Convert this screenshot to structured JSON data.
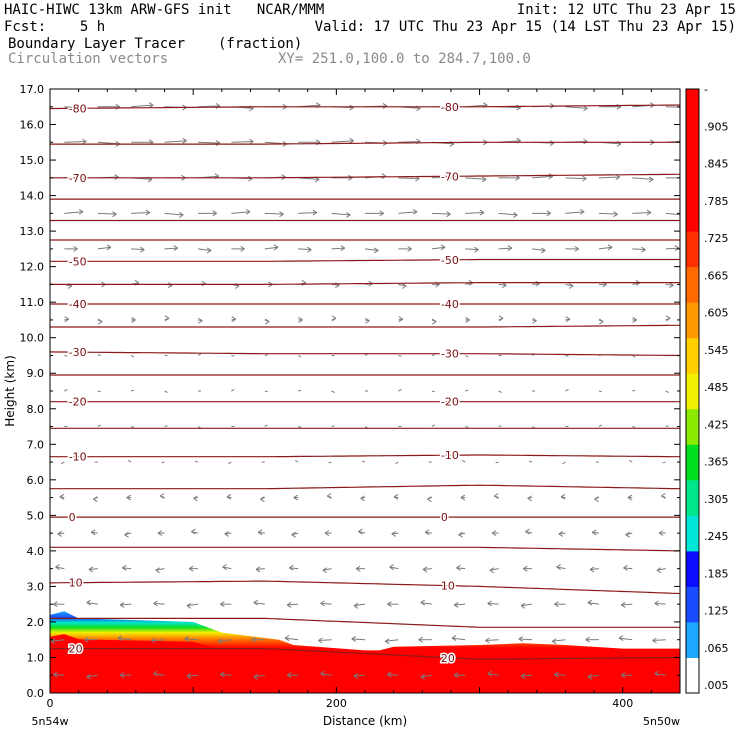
{
  "header": {
    "line1_left": "HAIC-HIWC 13km ARW-GFS init   NCAR/MMM",
    "line1_right": "Init: 12 UTC Thu 23 Apr 15",
    "line2_left": "Fcst:    5 h",
    "line2_right": "Valid: 17 UTC Thu 23 Apr 15 (14 LST Thu 23 Apr 15)",
    "field_name": "Boundary Layer Tracer",
    "field_units": "(fraction)",
    "overlay_name": "Circulation vectors",
    "xy_range": "XY= 251.0,100.0 to 284.7,100.0"
  },
  "chart_data": {
    "type": "heatmap",
    "xlabel": "Distance (km)",
    "ylabel": "Height (km)",
    "xlim": [
      0,
      440
    ],
    "ylim": [
      0,
      17
    ],
    "x_ticks": [
      "0",
      "200",
      "400"
    ],
    "x_tick_values": [
      0,
      200,
      400
    ],
    "y_ticks": [
      "0.0",
      "1.0",
      "2.0",
      "3.0",
      "4.0",
      "5.0",
      "6.0",
      "7.0",
      "8.0",
      "9.0",
      "10.0",
      "11.0",
      "12.0",
      "13.0",
      "14.0",
      "15.0",
      "16.0",
      "17.0"
    ],
    "corner_left": "5n54w",
    "corner_right": "5n50w",
    "colorbar_labels": [
      "-",
      ".905",
      ".845",
      ".785",
      ".725",
      ".665",
      ".605",
      ".545",
      ".485",
      ".425",
      ".365",
      ".305",
      ".245",
      ".185",
      ".125",
      ".065",
      ".005"
    ],
    "colorbar_colors": [
      "#ffffff",
      "#1da8ff",
      "#1a4dff",
      "#0a0dff",
      "#00e6d8",
      "#00e68a",
      "#00e020",
      "#8aea00",
      "#f0f000",
      "#ffcf00",
      "#ff9a00",
      "#ff6a00",
      "#ff3000",
      "#ff0000",
      "#ff0000",
      "#ff0000",
      "#ff0000"
    ],
    "tracer_top_height": {
      "x": [
        0,
        10,
        20,
        60,
        100,
        120,
        160,
        170,
        220,
        230,
        240,
        300,
        330,
        360,
        400,
        440
      ],
      "y": [
        2.2,
        2.3,
        2.1,
        2.05,
        2.0,
        1.7,
        1.5,
        1.35,
        1.2,
        1.2,
        1.3,
        1.35,
        1.4,
        1.35,
        1.25,
        1.25
      ]
    },
    "isotherms": [
      {
        "label": "-80",
        "y": [
          16.45,
          16.5,
          16.5,
          16.55
        ]
      },
      {
        "label": "",
        "y": [
          15.45,
          15.45,
          15.5,
          15.5
        ]
      },
      {
        "label": "-70",
        "y": [
          14.5,
          14.5,
          14.55,
          14.6
        ]
      },
      {
        "label": "",
        "y": [
          13.9,
          13.9,
          13.9,
          13.9
        ]
      },
      {
        "label": "",
        "y": [
          13.3,
          13.3,
          13.3,
          13.3
        ]
      },
      {
        "label": "",
        "y": [
          12.75,
          12.75,
          12.75,
          12.75
        ]
      },
      {
        "label": "-50",
        "y": [
          12.15,
          12.15,
          12.2,
          12.2
        ]
      },
      {
        "label": "",
        "y": [
          11.5,
          11.5,
          11.55,
          11.55
        ]
      },
      {
        "label": "-40",
        "y": [
          10.95,
          10.95,
          10.95,
          10.95
        ]
      },
      {
        "label": "",
        "y": [
          10.3,
          10.3,
          10.3,
          10.35
        ]
      },
      {
        "label": "-30",
        "y": [
          9.6,
          9.55,
          9.55,
          9.5
        ]
      },
      {
        "label": "",
        "y": [
          8.95,
          8.95,
          8.95,
          8.95
        ]
      },
      {
        "label": "-20",
        "y": [
          8.2,
          8.2,
          8.2,
          8.2
        ]
      },
      {
        "label": "",
        "y": [
          7.45,
          7.45,
          7.45,
          7.45
        ]
      },
      {
        "label": "-10",
        "y": [
          6.65,
          6.65,
          6.7,
          6.65
        ]
      },
      {
        "label": "",
        "y": [
          5.75,
          5.75,
          5.85,
          5.75
        ]
      },
      {
        "label": "0",
        "y": [
          4.95,
          4.95,
          4.95,
          4.95
        ]
      },
      {
        "label": "",
        "y": [
          4.1,
          4.1,
          4.1,
          4.0
        ]
      },
      {
        "label": "10",
        "y": [
          3.1,
          3.15,
          3.0,
          2.8
        ]
      },
      {
        "label": "",
        "y": [
          2.1,
          2.1,
          1.85,
          1.85
        ]
      },
      {
        "label": "20",
        "y": [
          1.25,
          1.25,
          0.95,
          1.0
        ]
      }
    ],
    "isotherm_x": [
      0,
      150,
      300,
      440
    ],
    "wind_vectors": {
      "note_levels_km": [
        16.5,
        15.5,
        14.5,
        13.5,
        12.5,
        11.5,
        10.5,
        9.5,
        8.5,
        7.5,
        6.5,
        5.5,
        4.5,
        3.5,
        2.5,
        1.5,
        0.5
      ],
      "u_relative": [
        1.0,
        1.0,
        0.95,
        0.85,
        0.6,
        0.35,
        0.2,
        0.1,
        0.05,
        0.0,
        -0.1,
        -0.2,
        -0.3,
        -0.4,
        -0.5,
        -0.6,
        -0.5
      ]
    }
  }
}
